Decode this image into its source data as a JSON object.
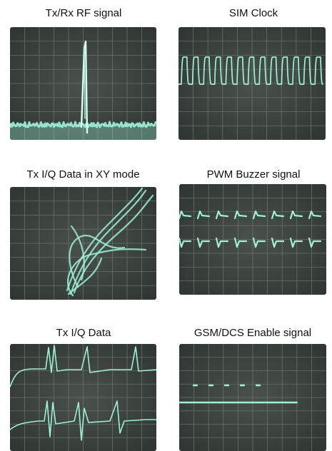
{
  "panels": [
    {
      "title": "Tx/Rx RF signal",
      "trace": "rf-spike"
    },
    {
      "title": "SIM Clock",
      "trace": "square-wave"
    },
    {
      "title": "Tx I/Q Data in XY mode",
      "trace": "xy-lissajous"
    },
    {
      "title": "PWM Buzzer signal",
      "trace": "pwm-pulses"
    },
    {
      "title": "Tx I/Q Data",
      "trace": "iq-spikes"
    },
    {
      "title": "GSM/DCS Enable signal",
      "trace": "enable-line"
    }
  ],
  "colors": {
    "screen": "#4a514c",
    "screen_dark": "#2f3632",
    "grid": "#6e7a72",
    "trace": "#9ff0d8",
    "trace_glow": "#d8fff4"
  }
}
